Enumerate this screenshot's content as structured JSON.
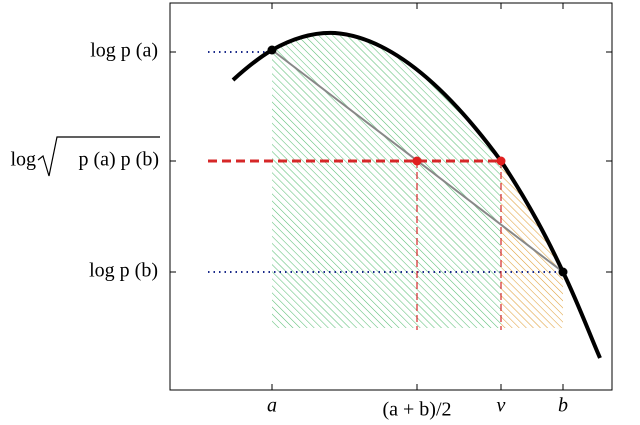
{
  "left_labels": {
    "top": "log p (a)",
    "middle": {
      "log": "log",
      "radicand": "p (a) p (b)"
    },
    "bottom": "log p (b)"
  },
  "bottom_labels": {
    "a": "a",
    "mid": "(a + b)/2",
    "nu": "ν",
    "b": "b"
  }
}
